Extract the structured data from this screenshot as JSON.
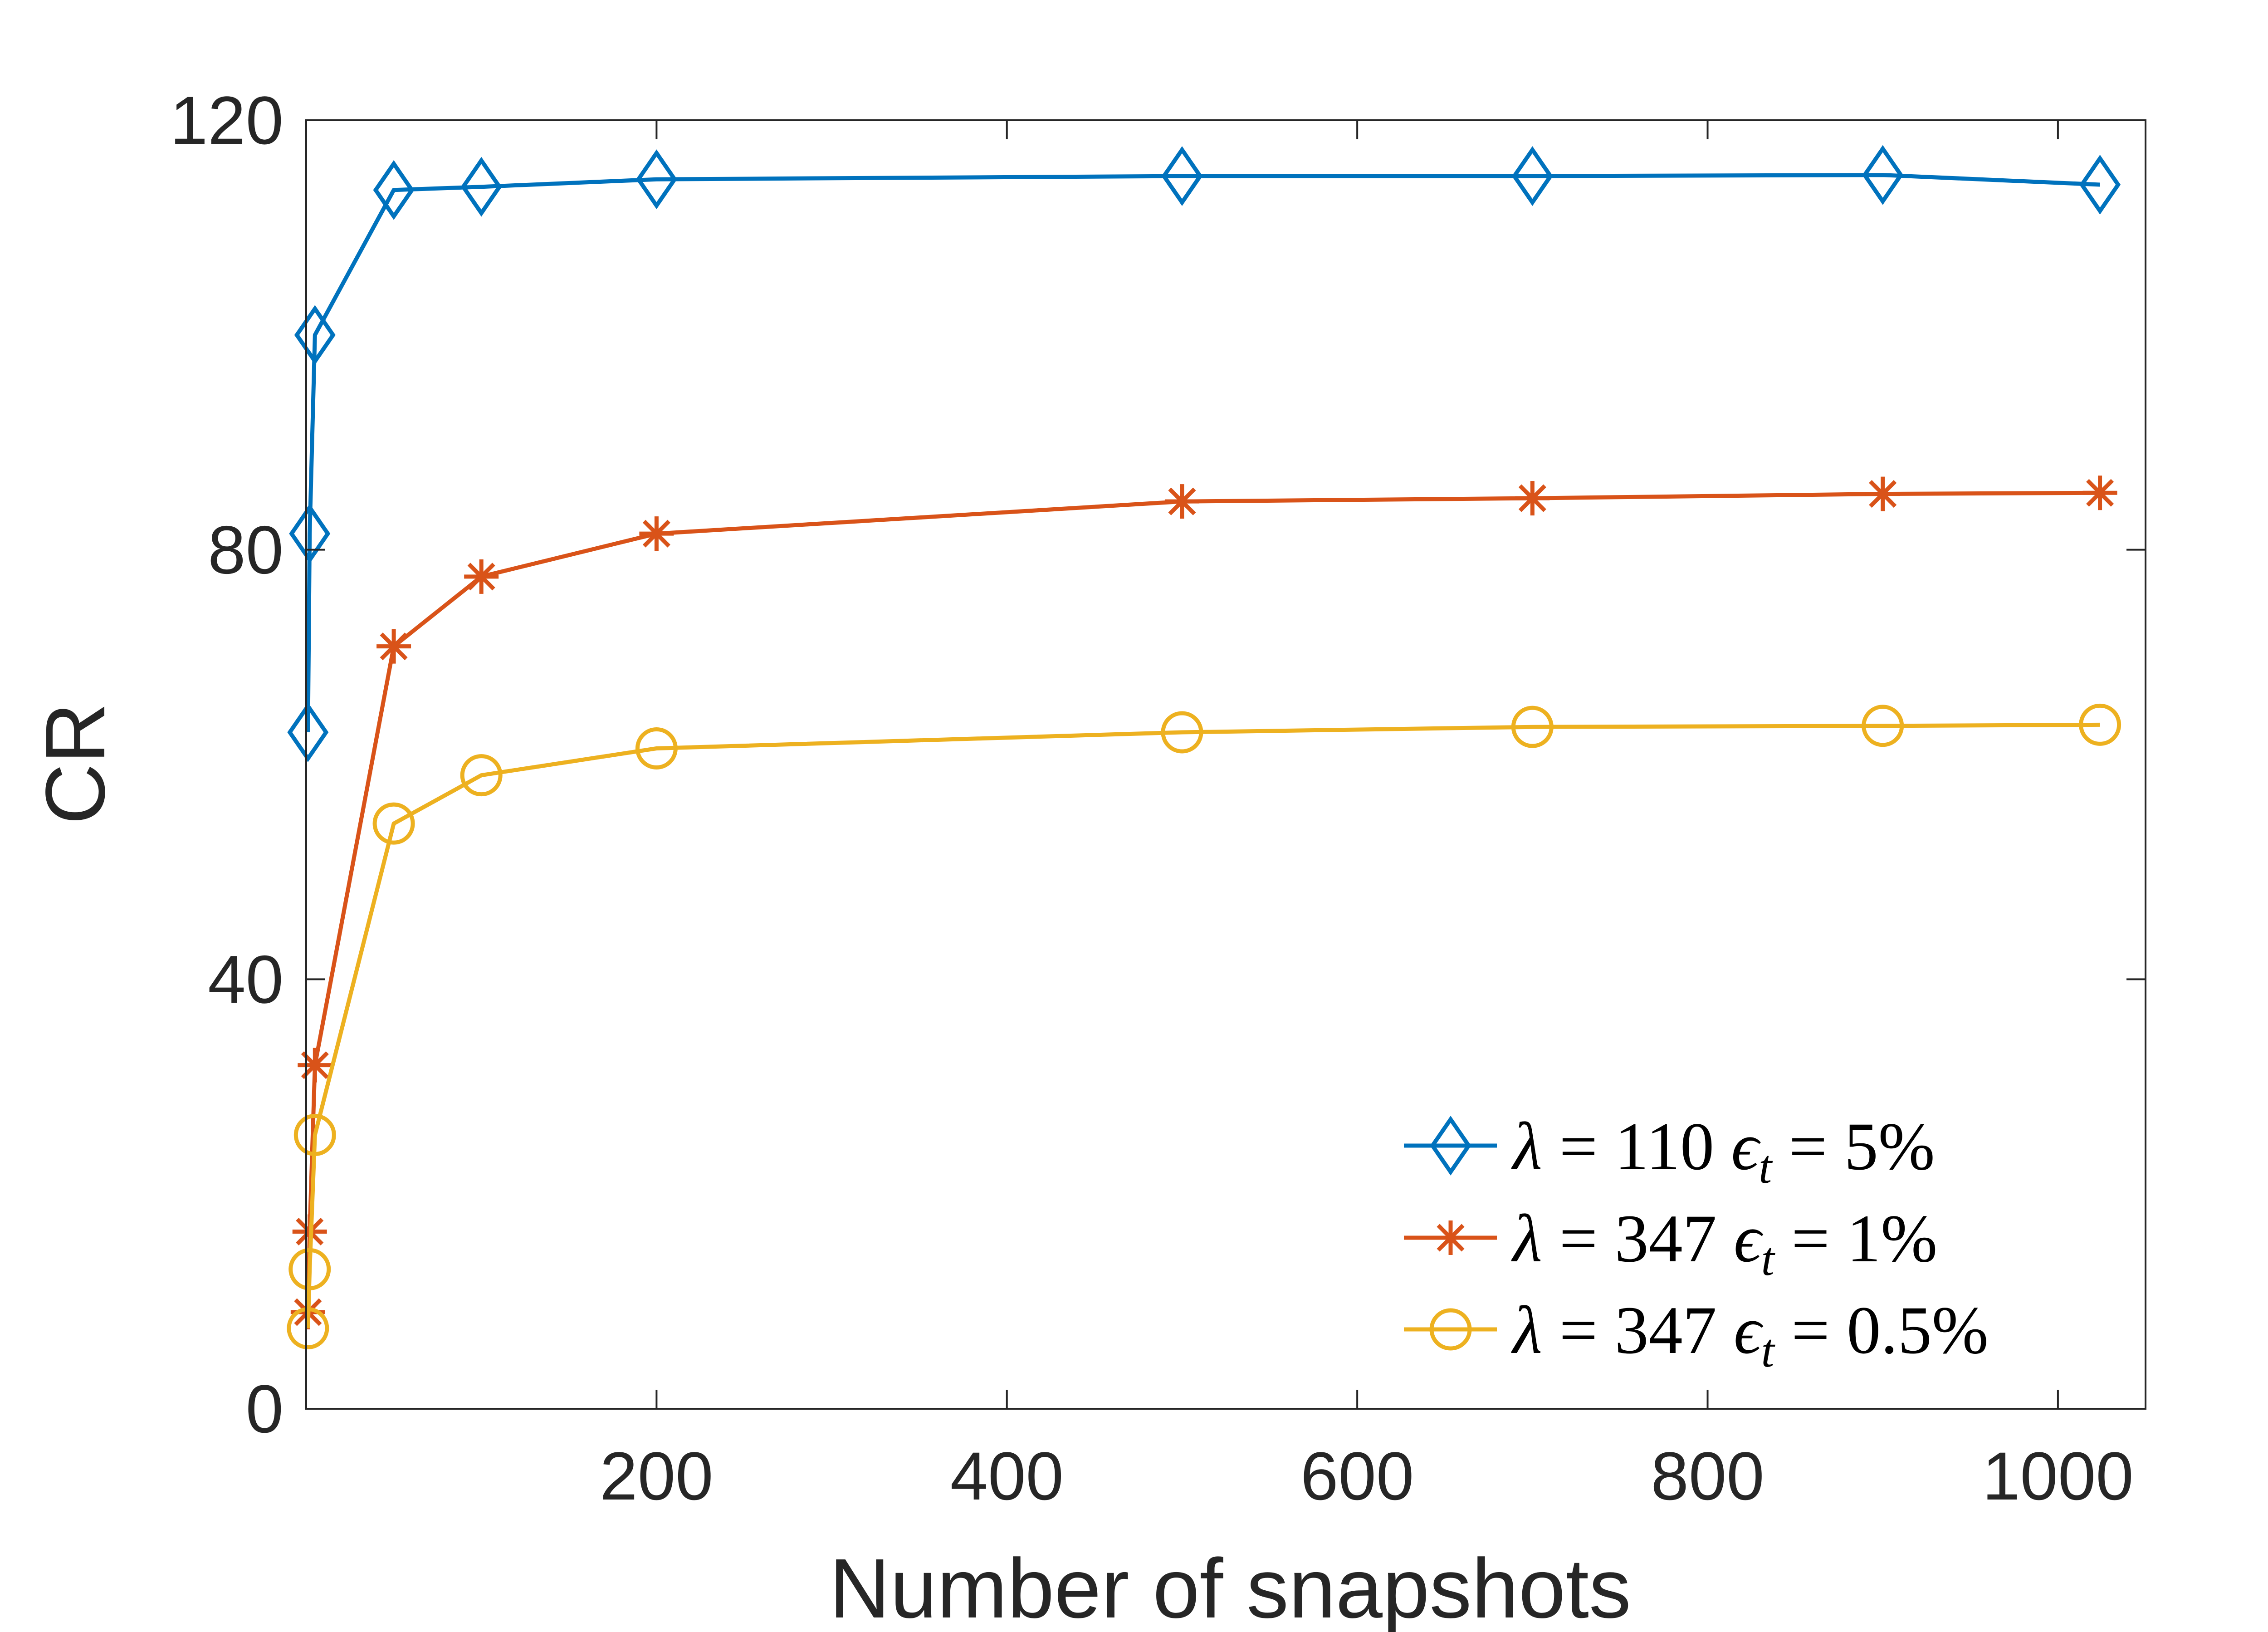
{
  "chart_data": {
    "type": "line",
    "title": "",
    "xlabel": "Number of snapshots",
    "ylabel": "CR",
    "xlim": [
      0,
      1050
    ],
    "ylim": [
      0,
      120
    ],
    "xticks": [
      200,
      400,
      600,
      800,
      1000
    ],
    "yticks": [
      0,
      40,
      80,
      120
    ],
    "xtick_labels": [
      "200",
      "400",
      "600",
      "800",
      "1000"
    ],
    "ytick_labels": [
      "0",
      "40",
      "80",
      "120"
    ],
    "grid": false,
    "legend_position": "bottom-right",
    "series": [
      {
        "name": "λ = 110 ϵt = 5%",
        "legend": {
          "lambda": "110",
          "eps": "5%"
        },
        "color": "#0072BD",
        "marker": "diamond",
        "x": [
          1,
          2,
          5,
          50,
          100,
          200,
          500,
          700,
          900,
          1024
        ],
        "y": [
          63,
          81.5,
          100,
          113.5,
          113.8,
          114.5,
          114.8,
          114.8,
          114.9,
          114
        ]
      },
      {
        "name": "λ = 347 ϵt = 1%",
        "legend": {
          "lambda": "347",
          "eps": "1%"
        },
        "color": "#D95319",
        "marker": "asterisk",
        "x": [
          1,
          2,
          5,
          50,
          100,
          200,
          500,
          700,
          900,
          1024
        ],
        "y": [
          9,
          16.5,
          32,
          71,
          77.5,
          81.5,
          84.5,
          84.8,
          85.2,
          85.3
        ]
      },
      {
        "name": "λ = 347 ϵt = 0.5%",
        "legend": {
          "lambda": "347",
          "eps": "0.5%"
        },
        "color": "#EDB120",
        "marker": "circle",
        "x": [
          1,
          2,
          5,
          50,
          100,
          200,
          500,
          700,
          900,
          1024
        ],
        "y": [
          7.5,
          13,
          25.5,
          54.5,
          59,
          61.5,
          63,
          63.5,
          63.6,
          63.7
        ]
      }
    ]
  }
}
